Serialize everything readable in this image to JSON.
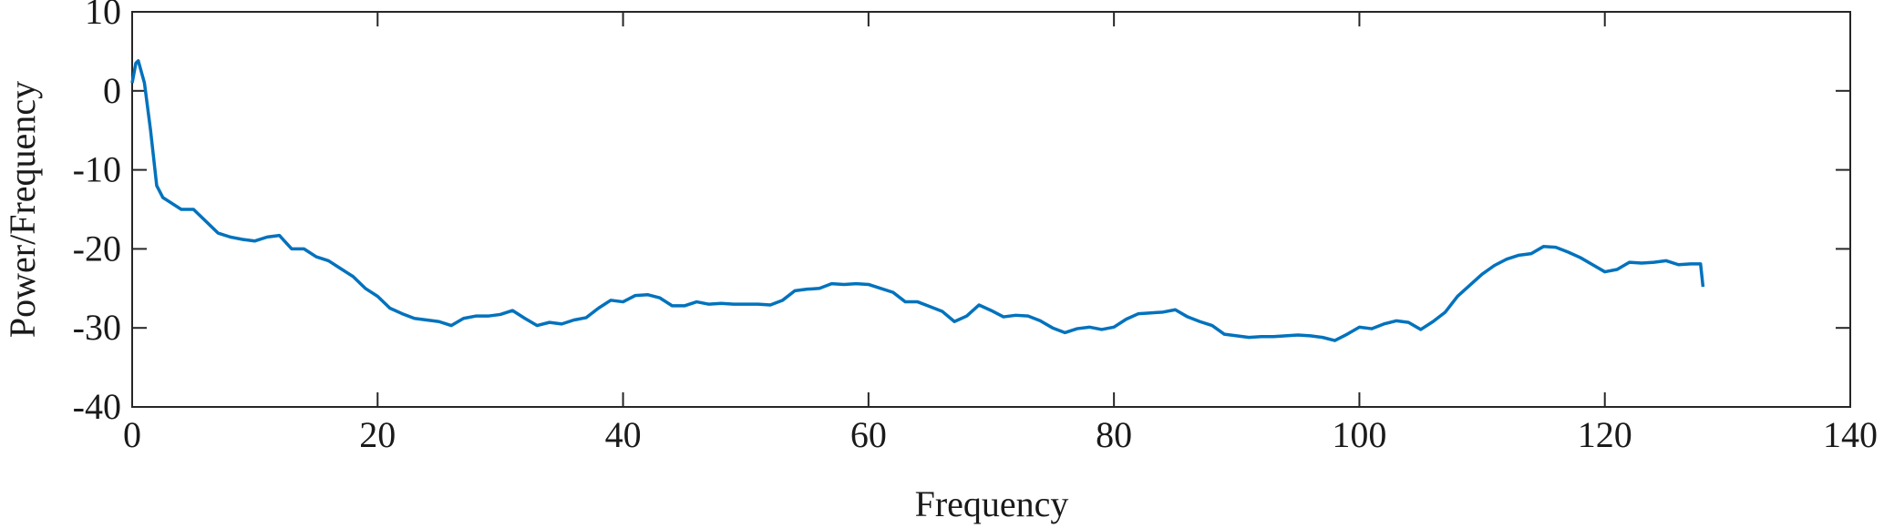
{
  "chart_data": {
    "type": "line",
    "xlabel": "Frequency",
    "ylabel": "Power/Frequency",
    "xlim": [
      0,
      140
    ],
    "ylim": [
      -40,
      10
    ],
    "xticks": [
      0,
      20,
      40,
      60,
      80,
      100,
      120,
      140
    ],
    "yticks": [
      -40,
      -30,
      -20,
      -10,
      0,
      10
    ],
    "grid": false,
    "box": true,
    "x": [
      0,
      0.3,
      0.5,
      1,
      1.5,
      2,
      2.5,
      3,
      4,
      5,
      6,
      7,
      8,
      9,
      10,
      11,
      12,
      13,
      14,
      15,
      16,
      17,
      18,
      19,
      20,
      21,
      22,
      23,
      24,
      25,
      26,
      27,
      28,
      29,
      30,
      31,
      32,
      33,
      34,
      35,
      36,
      37,
      38,
      39,
      40,
      41,
      42,
      43,
      44,
      45,
      46,
      47,
      48,
      49,
      50,
      51,
      52,
      53,
      54,
      55,
      56,
      57,
      58,
      59,
      60,
      61,
      62,
      63,
      64,
      65,
      66,
      67,
      68,
      69,
      70,
      71,
      72,
      73,
      74,
      75,
      76,
      77,
      78,
      79,
      80,
      81,
      82,
      83,
      84,
      85,
      86,
      87,
      88,
      89,
      90,
      91,
      92,
      93,
      94,
      95,
      96,
      97,
      98,
      99,
      100,
      101,
      102,
      103,
      104,
      105,
      106,
      107,
      108,
      109,
      110,
      111,
      112,
      113,
      114,
      115,
      116,
      117,
      118,
      119,
      120,
      121,
      122,
      123,
      124,
      125,
      126,
      127,
      127.8,
      128
    ],
    "series": [
      {
        "color": "#0072bd",
        "values": [
          1,
          3.5,
          3.8,
          1,
          -5,
          -12,
          -13.5,
          -14,
          -15,
          -15,
          -16.5,
          -18,
          -18.5,
          -18.8,
          -19,
          -18.5,
          -18.3,
          -20,
          -20,
          -21,
          -21.5,
          -22.5,
          -23.5,
          -25,
          -26,
          -27.5,
          -28.2,
          -28.8,
          -29,
          -29.2,
          -29.7,
          -28.8,
          -28.5,
          -28.5,
          -28.3,
          -27.8,
          -28.8,
          -29.7,
          -29.3,
          -29.5,
          -29,
          -28.7,
          -27.5,
          -26.5,
          -26.7,
          -25.9,
          -25.8,
          -26.2,
          -27.2,
          -27.2,
          -26.7,
          -27,
          -26.9,
          -27,
          -27,
          -27,
          -27.1,
          -26.5,
          -25.3,
          -25.1,
          -25,
          -24.4,
          -24.5,
          -24.4,
          -24.5,
          -25,
          -25.5,
          -26.7,
          -26.7,
          -27.3,
          -27.9,
          -29.2,
          -28.5,
          -27.1,
          -27.8,
          -28.6,
          -28.4,
          -28.5,
          -29.1,
          -30,
          -30.6,
          -30.1,
          -29.9,
          -30.2,
          -29.9,
          -28.9,
          -28.2,
          -28.1,
          -28,
          -27.7,
          -28.6,
          -29.2,
          -29.7,
          -30.8,
          -31,
          -31.2,
          -31.1,
          -31.1,
          -31,
          -30.9,
          -31,
          -31.2,
          -31.6,
          -30.8,
          -29.9,
          -30.1,
          -29.5,
          -29.1,
          -29.3,
          -30.2,
          -29.2,
          -28,
          -26,
          -24.6,
          -23.2,
          -22.1,
          -21.3,
          -20.8,
          -20.6,
          -19.7,
          -19.8,
          -20.4,
          -21.1,
          -22,
          -22.9,
          -22.6,
          -21.7,
          -21.8,
          -21.7,
          -21.5,
          -22,
          -21.9,
          -21.9,
          -24.8
        ]
      }
    ]
  }
}
